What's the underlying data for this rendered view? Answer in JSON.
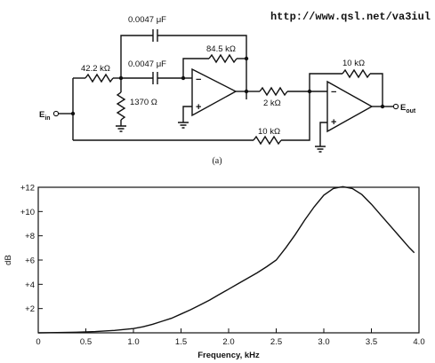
{
  "source_url": "http://www.qsl.net/va3iul",
  "circuit": {
    "caption": "(a)",
    "labels": {
      "c_top": "0.0047 μF",
      "c_mid": "0.0047 μF",
      "r_in": "42.2 kΩ",
      "r_shunt": "1370 Ω",
      "r_fb1": "84.5 kΩ",
      "r_mid": "2 kΩ",
      "r_fb2": "10 kΩ",
      "r_bottom": "10 kΩ",
      "e_in": "E",
      "e_in_sub": "in",
      "e_out": "E",
      "e_out_sub": "out",
      "minus": "−",
      "plus": "+"
    }
  },
  "chart_data": {
    "type": "line",
    "xlabel": "Frequency, kHz",
    "ylabel": "dB",
    "xlim": [
      0,
      4.0
    ],
    "ylim": [
      0,
      12
    ],
    "x_ticks": [
      "0",
      "0.5",
      "1.0",
      "1.5",
      "2.0",
      "2.5",
      "3.0",
      "3.5",
      "4.0"
    ],
    "x_tick_values": [
      0,
      0.5,
      1.0,
      1.5,
      2.0,
      2.5,
      3.0,
      3.5,
      4.0
    ],
    "y_ticks": [
      "+2",
      "+4",
      "+6",
      "+8",
      "+10",
      "+12"
    ],
    "y_tick_values": [
      2,
      4,
      6,
      8,
      10,
      12
    ],
    "grid": false,
    "series": [
      {
        "x": [
          0,
          0.2,
          0.4,
          0.6,
          0.8,
          1.0,
          1.1,
          1.2,
          1.3,
          1.4,
          1.5,
          1.6,
          1.7,
          1.8,
          1.9,
          2.0,
          2.1,
          2.2,
          2.3,
          2.4,
          2.5,
          2.6,
          2.7,
          2.8,
          2.9,
          3.0,
          3.1,
          3.2,
          3.3,
          3.4,
          3.5,
          3.6,
          3.7,
          3.8,
          3.9,
          3.95
        ],
        "y": [
          0,
          0.02,
          0.05,
          0.1,
          0.2,
          0.35,
          0.5,
          0.7,
          0.95,
          1.2,
          1.55,
          1.9,
          2.3,
          2.7,
          3.15,
          3.6,
          4.05,
          4.5,
          4.95,
          5.45,
          6.0,
          7.0,
          8.1,
          9.3,
          10.4,
          11.35,
          11.9,
          12.05,
          11.9,
          11.4,
          10.6,
          9.7,
          8.8,
          7.9,
          7.0,
          6.6
        ]
      }
    ]
  }
}
